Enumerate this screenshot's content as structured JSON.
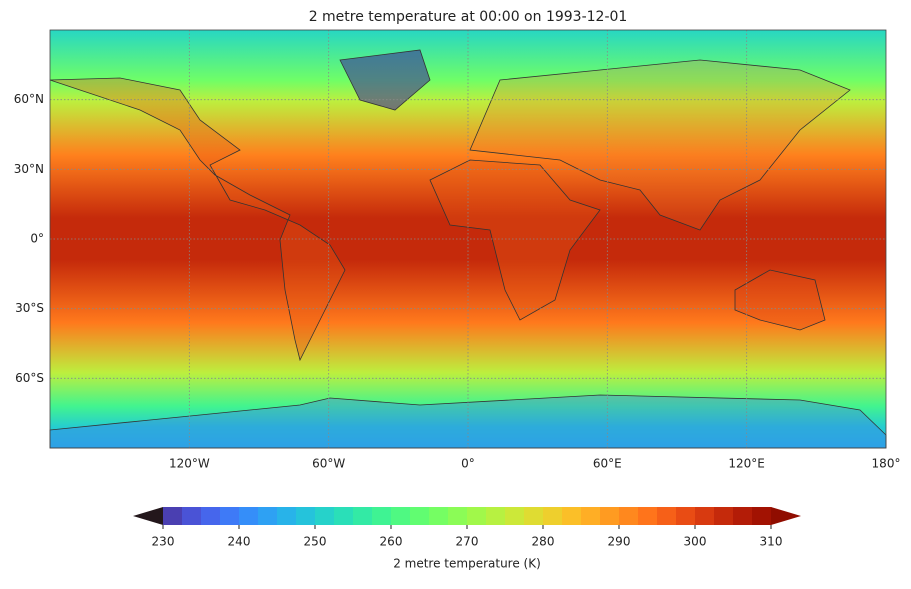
{
  "chart_data": {
    "type": "contour-map",
    "title": "2 metre temperature at 00:00 on 1993-12-01",
    "xlim": [
      -180,
      180
    ],
    "ylim": [
      -90,
      90
    ],
    "xticks": [
      {
        "value": -120,
        "label": "120°W"
      },
      {
        "value": -60,
        "label": "60°W"
      },
      {
        "value": 0,
        "label": "0°"
      },
      {
        "value": 60,
        "label": "60°E"
      },
      {
        "value": 120,
        "label": "120°E"
      },
      {
        "value": 180,
        "label": "180°"
      }
    ],
    "yticks": [
      {
        "value": 60,
        "label": "60°N"
      },
      {
        "value": 30,
        "label": "30°N"
      },
      {
        "value": 0,
        "label": "0°"
      },
      {
        "value": -30,
        "label": "30°S"
      },
      {
        "value": -60,
        "label": "60°S"
      }
    ],
    "grid": true,
    "colorbar": {
      "label": "2 metre temperature (K)",
      "lim": [
        230,
        310
      ],
      "ticks": [
        230,
        240,
        250,
        260,
        270,
        280,
        290,
        300,
        310
      ],
      "colormap": "turbo",
      "extend": "both"
    }
  }
}
